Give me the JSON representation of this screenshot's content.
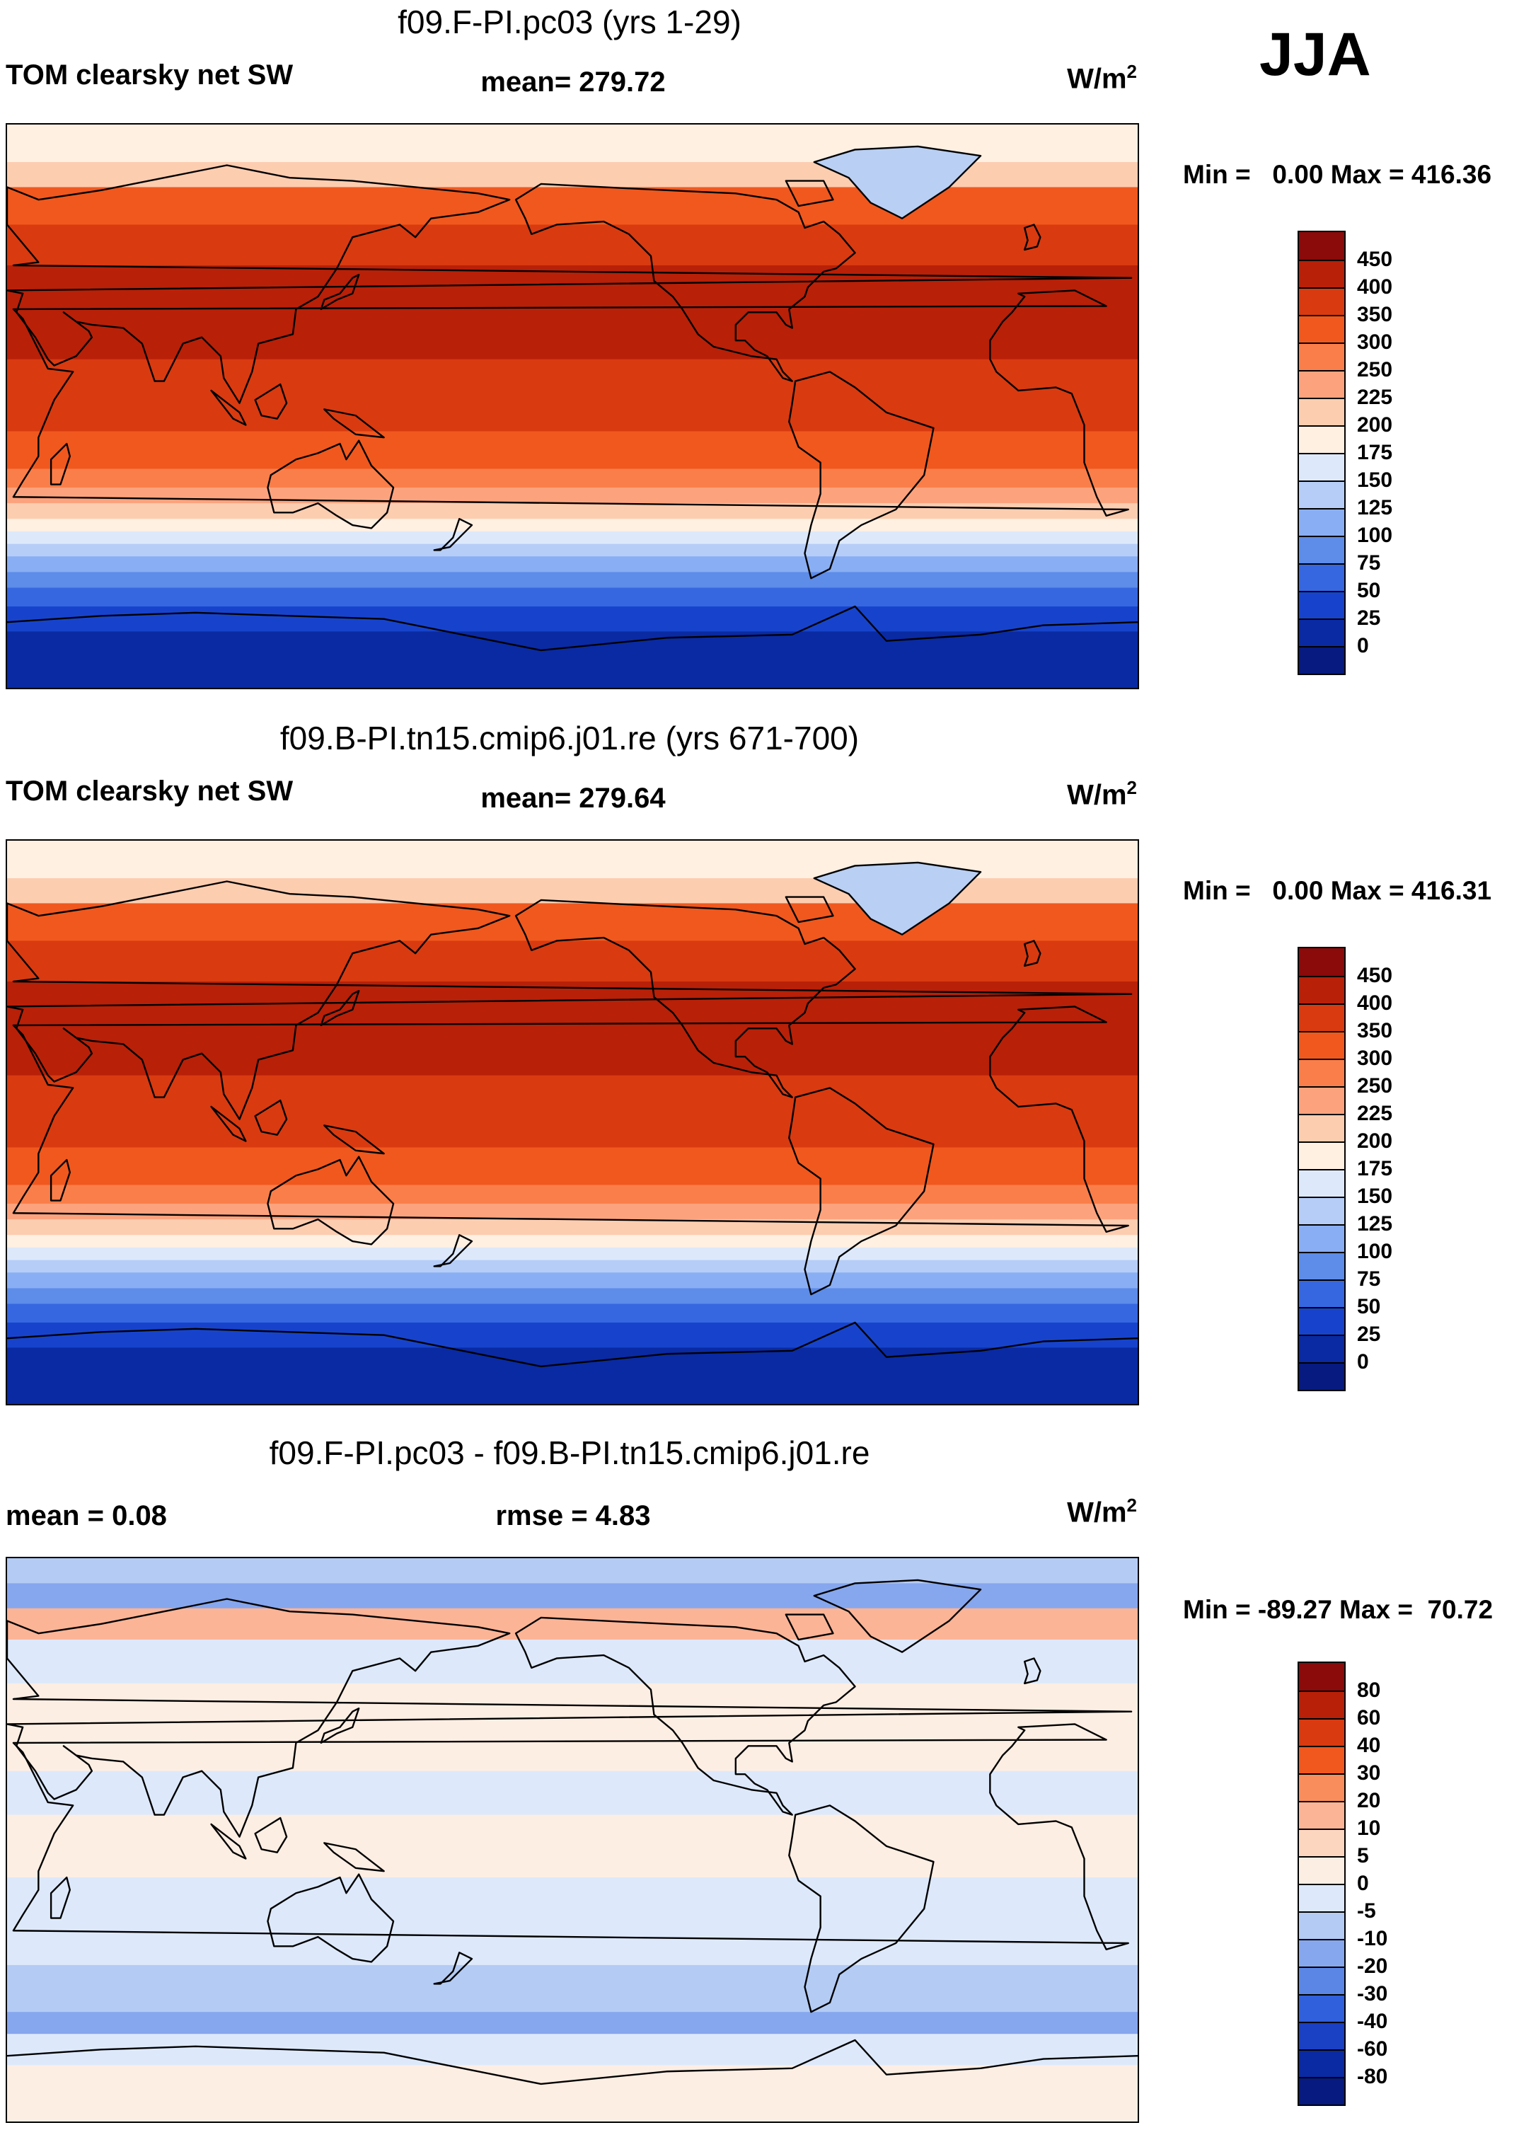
{
  "season": "JJA",
  "panels": [
    {
      "id": "model",
      "title": "f09.F-PI.pc03 (yrs 1-29)",
      "left_label": "TOM clearsky net SW",
      "mid_label": "mean= 279.72",
      "unit_base": "W/m",
      "unit_exp": "2",
      "minmax": "Min =   0.00 Max = 416.36",
      "ticks": [
        "450",
        "400",
        "350",
        "300",
        "250",
        "225",
        "200",
        "175",
        "150",
        "125",
        "100",
        "75",
        "50",
        "25",
        "0"
      ],
      "colors": [
        "#8b0a0a",
        "#b82008",
        "#d93a10",
        "#f0581e",
        "#fa7e4a",
        "#fca37e",
        "#fdcdb0",
        "#fff0e2",
        "#dde9fb",
        "#b6cdf7",
        "#8aaef3",
        "#5d8ce9",
        "#3667e0",
        "#1743cc",
        "#0a2aa3",
        "#061a80"
      ],
      "bands": [
        {
          "lat_n": 90,
          "lat_s": 78,
          "level": 7
        },
        {
          "lat_n": 78,
          "lat_s": 70,
          "level": 6
        },
        {
          "lat_n": 70,
          "lat_s": 58,
          "level": 3
        },
        {
          "lat_n": 58,
          "lat_s": 45,
          "level": 2
        },
        {
          "lat_n": 45,
          "lat_s": 15,
          "level": 1
        },
        {
          "lat_n": 15,
          "lat_s": -8,
          "level": 2
        },
        {
          "lat_n": -8,
          "lat_s": -20,
          "level": 3
        },
        {
          "lat_n": -20,
          "lat_s": -26,
          "level": 4
        },
        {
          "lat_n": -26,
          "lat_s": -31,
          "level": 5
        },
        {
          "lat_n": -31,
          "lat_s": -36,
          "level": 6
        },
        {
          "lat_n": -36,
          "lat_s": -40,
          "level": 7
        },
        {
          "lat_n": -40,
          "lat_s": -44,
          "level": 8
        },
        {
          "lat_n": -44,
          "lat_s": -48,
          "level": 9
        },
        {
          "lat_n": -48,
          "lat_s": -53,
          "level": 10
        },
        {
          "lat_n": -53,
          "lat_s": -58,
          "level": 11
        },
        {
          "lat_n": -58,
          "lat_s": -64,
          "level": 12
        },
        {
          "lat_n": -64,
          "lat_s": -72,
          "level": 13
        },
        {
          "lat_n": -72,
          "lat_s": -90,
          "level": 14
        }
      ]
    },
    {
      "id": "control",
      "title": "f09.B-PI.tn15.cmip6.j01.re (yrs 671-700)",
      "left_label": "TOM clearsky net SW",
      "mid_label": "mean= 279.64",
      "unit_base": "W/m",
      "unit_exp": "2",
      "minmax": "Min =   0.00 Max = 416.31",
      "ticks": [
        "450",
        "400",
        "350",
        "300",
        "250",
        "225",
        "200",
        "175",
        "150",
        "125",
        "100",
        "75",
        "50",
        "25",
        "0"
      ],
      "colors": [
        "#8b0a0a",
        "#b82008",
        "#d93a10",
        "#f0581e",
        "#fa7e4a",
        "#fca37e",
        "#fdcdb0",
        "#fff0e2",
        "#dde9fb",
        "#b6cdf7",
        "#8aaef3",
        "#5d8ce9",
        "#3667e0",
        "#1743cc",
        "#0a2aa3",
        "#061a80"
      ],
      "bands": [
        {
          "lat_n": 90,
          "lat_s": 78,
          "level": 7
        },
        {
          "lat_n": 78,
          "lat_s": 70,
          "level": 6
        },
        {
          "lat_n": 70,
          "lat_s": 58,
          "level": 3
        },
        {
          "lat_n": 58,
          "lat_s": 45,
          "level": 2
        },
        {
          "lat_n": 45,
          "lat_s": 15,
          "level": 1
        },
        {
          "lat_n": 15,
          "lat_s": -8,
          "level": 2
        },
        {
          "lat_n": -8,
          "lat_s": -20,
          "level": 3
        },
        {
          "lat_n": -20,
          "lat_s": -26,
          "level": 4
        },
        {
          "lat_n": -26,
          "lat_s": -31,
          "level": 5
        },
        {
          "lat_n": -31,
          "lat_s": -36,
          "level": 6
        },
        {
          "lat_n": -36,
          "lat_s": -40,
          "level": 7
        },
        {
          "lat_n": -40,
          "lat_s": -44,
          "level": 8
        },
        {
          "lat_n": -44,
          "lat_s": -48,
          "level": 9
        },
        {
          "lat_n": -48,
          "lat_s": -53,
          "level": 10
        },
        {
          "lat_n": -53,
          "lat_s": -58,
          "level": 11
        },
        {
          "lat_n": -58,
          "lat_s": -64,
          "level": 12
        },
        {
          "lat_n": -64,
          "lat_s": -72,
          "level": 13
        },
        {
          "lat_n": -72,
          "lat_s": -90,
          "level": 14
        }
      ]
    },
    {
      "id": "difference",
      "title": "f09.F-PI.pc03 - f09.B-PI.tn15.cmip6.j01.re",
      "left_label": "mean =   0.08",
      "mid_label": "rmse =   4.83",
      "unit_base": "W/m",
      "unit_exp": "2",
      "minmax": "Min = -89.27 Max =  70.72",
      "ticks": [
        "80",
        "60",
        "40",
        "30",
        "20",
        "10",
        "5",
        "0",
        "-5",
        "-10",
        "-20",
        "-30",
        "-40",
        "-60",
        "-80"
      ],
      "colors": [
        "#8b0a0a",
        "#b82008",
        "#d93a10",
        "#f0581e",
        "#fa8d5c",
        "#fcb496",
        "#fdd6c0",
        "#fdeee3",
        "#dde9fb",
        "#b4cbf4",
        "#86a7ee",
        "#5b86e6",
        "#3060db",
        "#1a40c4",
        "#0a2aa3",
        "#061a80"
      ],
      "bands": [
        {
          "lat_n": 90,
          "lat_s": 82,
          "level": 9
        },
        {
          "lat_n": 82,
          "lat_s": 74,
          "level": 10
        },
        {
          "lat_n": 74,
          "lat_s": 64,
          "level": 5
        },
        {
          "lat_n": 64,
          "lat_s": 50,
          "level": 8
        },
        {
          "lat_n": 50,
          "lat_s": 22,
          "level": 7
        },
        {
          "lat_n": 22,
          "lat_s": 8,
          "level": 8
        },
        {
          "lat_n": 8,
          "lat_s": -12,
          "level": 7
        },
        {
          "lat_n": -12,
          "lat_s": -40,
          "level": 8
        },
        {
          "lat_n": -40,
          "lat_s": -55,
          "level": 9
        },
        {
          "lat_n": -55,
          "lat_s": -62,
          "level": 10
        },
        {
          "lat_n": -62,
          "lat_s": -72,
          "level": 8
        },
        {
          "lat_n": -72,
          "lat_s": -90,
          "level": 7
        }
      ]
    }
  ]
}
